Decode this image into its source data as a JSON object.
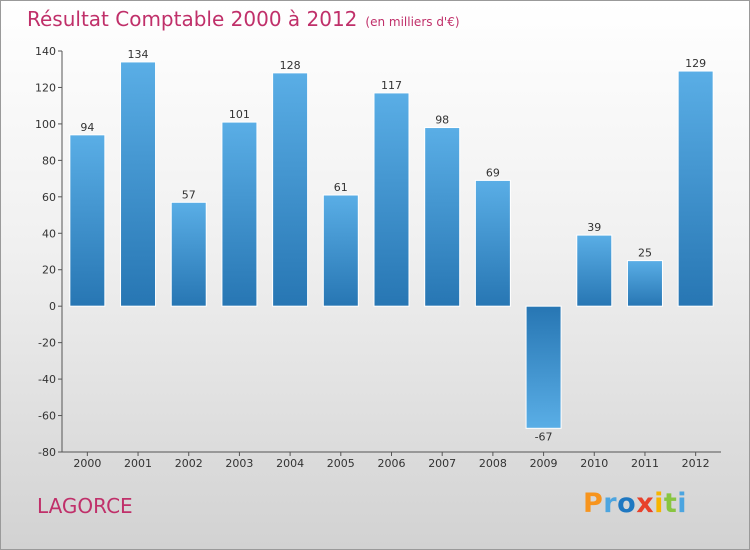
{
  "header": {
    "title": "Résultat Comptable 2000 à 2012",
    "subtitle": "(en milliers d'€)"
  },
  "footer": {
    "commune": "LAGORCE",
    "logo_letters": [
      "P",
      "r",
      "o",
      "x",
      "i",
      "t",
      "i"
    ],
    "logo_colors": [
      "#f7941d",
      "#4ca5e0",
      "#1f78c1",
      "#e8412b",
      "#f7b500",
      "#88c540",
      "#4ca5e0"
    ]
  },
  "colors": {
    "bar_light": "#5aaee6",
    "bar_dark": "#2776b3",
    "title": "#c0306a",
    "axis": "#555555"
  },
  "chart_data": {
    "type": "bar",
    "title": "Résultat Comptable 2000 à 2012",
    "xlabel": "",
    "ylabel": "",
    "ylim": [
      -80,
      140
    ],
    "yticks": [
      -80,
      -60,
      -40,
      -20,
      0,
      20,
      40,
      60,
      80,
      100,
      120,
      140
    ],
    "grid": false,
    "categories": [
      "2000",
      "2001",
      "2002",
      "2003",
      "2004",
      "2005",
      "2006",
      "2007",
      "2008",
      "2009",
      "2010",
      "2011",
      "2012"
    ],
    "values": [
      94,
      134,
      57,
      101,
      128,
      61,
      117,
      98,
      69,
      -67,
      39,
      25,
      129
    ]
  }
}
